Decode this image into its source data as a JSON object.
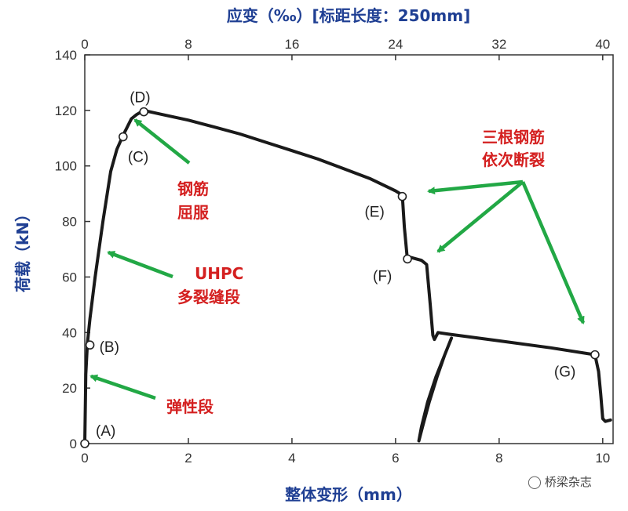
{
  "chart_data": {
    "type": "line",
    "title": "",
    "xlabel": "整体变形（mm）",
    "ylabel": "荷载（kN）",
    "x2label": "应变（‰）[标距长度：250mm]",
    "xlim": [
      0,
      10.2
    ],
    "ylim": [
      0,
      140
    ],
    "x2lim": [
      0,
      40
    ],
    "x_ticks": [
      0,
      2,
      4,
      6,
      8,
      10
    ],
    "y_ticks": [
      0,
      20,
      40,
      60,
      80,
      100,
      120,
      140
    ],
    "x2_ticks": [
      0,
      8,
      16,
      24,
      32,
      40
    ],
    "grid": false,
    "legend": "none",
    "series": [
      {
        "x": [
          0,
          0.02,
          0.05,
          0.1,
          0.2,
          0.35,
          0.5,
          0.62,
          0.74,
          0.82,
          0.9,
          1.0,
          1.14,
          1.5,
          2.0,
          2.5,
          3.0,
          3.5,
          4.0,
          4.5,
          5.0,
          5.5,
          6.0,
          6.13,
          6.17,
          6.22,
          6.23,
          6.3,
          6.5,
          6.6,
          6.67,
          6.72,
          6.75,
          6.82,
          7.0,
          8.0,
          9.0,
          9.85,
          9.92,
          9.96,
          10.0,
          10.05,
          10.15
        ],
        "y": [
          0,
          25,
          36,
          45,
          60,
          80,
          98,
          106,
          111,
          114,
          117,
          118.5,
          120,
          118.5,
          116.5,
          114,
          111.5,
          108.5,
          105.5,
          102.5,
          99,
          95.5,
          91,
          89.5,
          78,
          68,
          66.5,
          67,
          66,
          64.5,
          50,
          39,
          37.5,
          40,
          39.5,
          37,
          34.5,
          32,
          26,
          18,
          9,
          8,
          8.5
        ]
      },
      {
        "x": [
          7.08,
          6.95,
          6.8,
          6.65,
          6.52,
          6.45,
          6.5,
          6.62,
          6.78,
          6.95,
          7.08
        ],
        "y": [
          38,
          32,
          24,
          15,
          6,
          1,
          6,
          15,
          24,
          32,
          38
        ]
      }
    ],
    "points": [
      {
        "label": "(A)",
        "x": 0,
        "y": 0
      },
      {
        "label": "(B)",
        "x": 0.1,
        "y": 35.5
      },
      {
        "label": "(C)",
        "x": 0.74,
        "y": 110.5
      },
      {
        "label": "(D)",
        "x": 1.14,
        "y": 119.5
      },
      {
        "label": "(E)",
        "x": 6.13,
        "y": 89
      },
      {
        "label": "(F)",
        "x": 6.23,
        "y": 66.5
      },
      {
        "label": "(G)",
        "x": 9.85,
        "y": 32
      }
    ],
    "annotations": [
      {
        "text": "弹性段"
      },
      {
        "text": "UHPC"
      },
      {
        "text": "多裂缝段"
      },
      {
        "text": "钢筋"
      },
      {
        "text": "屈服"
      },
      {
        "text": "三根钢筋"
      },
      {
        "text": "依次断裂"
      }
    ]
  },
  "colors": {
    "line": "#1a1a1a",
    "axis_title": "#1f3f93",
    "annotation_text": "#d42020",
    "arrow": "#22a845"
  },
  "watermark": {
    "icon": "wechat-icon",
    "text": "桥梁杂志"
  }
}
